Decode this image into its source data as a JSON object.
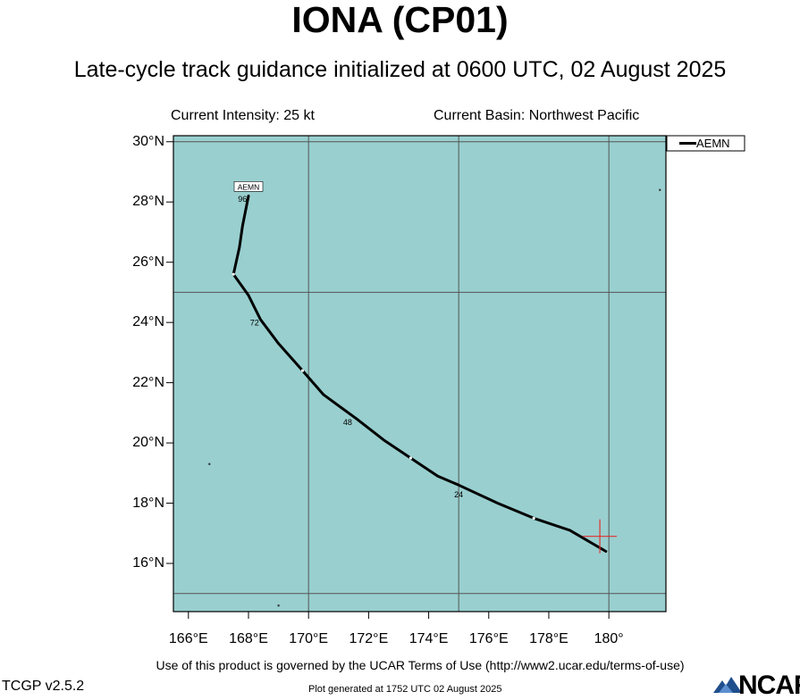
{
  "storm": {
    "title": "IONA (CP01)",
    "subtitle": "Late-cycle track guidance initialized at 0600 UTC, 02 August 2025"
  },
  "info": {
    "intensity": "Current Intensity: 25 kt",
    "basin": "Current Basin: Northwest Pacific"
  },
  "map": {
    "lon_range": [
      165.5,
      181.9
    ],
    "lat_range": [
      14.4,
      30.2
    ],
    "gridlines_lon": [
      170,
      175,
      180
    ],
    "gridlines_lat": [
      15,
      25,
      30
    ],
    "ocean_color": "#99cfcf",
    "grid_color": "#555555",
    "lat_ticks": [
      {
        "value": 30,
        "label": "30°N"
      },
      {
        "value": 28,
        "label": "28°N"
      },
      {
        "value": 26,
        "label": "26°N"
      },
      {
        "value": 24,
        "label": "24°N"
      },
      {
        "value": 22,
        "label": "22°N"
      },
      {
        "value": 20,
        "label": "20°N"
      },
      {
        "value": 18,
        "label": "18°N"
      },
      {
        "value": 16,
        "label": "16°N"
      }
    ],
    "lon_ticks": [
      {
        "value": 166,
        "label": "166°E"
      },
      {
        "value": 168,
        "label": "168°E"
      },
      {
        "value": 170,
        "label": "170°E"
      },
      {
        "value": 172,
        "label": "172°E"
      },
      {
        "value": 174,
        "label": "174°E"
      },
      {
        "value": 176,
        "label": "176°E"
      },
      {
        "value": 178,
        "label": "178°E"
      },
      {
        "value": 180,
        "label": "180°"
      }
    ],
    "current_position": {
      "lon": 179.7,
      "lat": 16.9,
      "color": "#e0302f"
    },
    "islands": [
      {
        "lon": 166.7,
        "lat": 19.3
      },
      {
        "lon": 169.0,
        "lat": 14.6
      },
      {
        "lon": 181.7,
        "lat": 28.4
      }
    ]
  },
  "track": {
    "model": "AEMN",
    "points": [
      {
        "lon": 179.9,
        "lat": 16.4
      },
      {
        "lon": 178.7,
        "lat": 17.1
      },
      {
        "lon": 177.5,
        "lat": 17.5
      },
      {
        "lon": 176.3,
        "lat": 18.0
      },
      {
        "lon": 175.0,
        "lat": 18.6
      },
      {
        "lon": 174.3,
        "lat": 18.9
      },
      {
        "lon": 173.4,
        "lat": 19.5
      },
      {
        "lon": 172.5,
        "lat": 20.1
      },
      {
        "lon": 171.6,
        "lat": 20.8
      },
      {
        "lon": 170.5,
        "lat": 21.6
      },
      {
        "lon": 169.8,
        "lat": 22.4
      },
      {
        "lon": 169.0,
        "lat": 23.3
      },
      {
        "lon": 168.4,
        "lat": 24.1
      },
      {
        "lon": 168.0,
        "lat": 24.9
      },
      {
        "lon": 167.5,
        "lat": 25.6
      },
      {
        "lon": 167.7,
        "lat": 26.5
      },
      {
        "lon": 167.8,
        "lat": 27.2
      },
      {
        "lon": 168.0,
        "lat": 28.2
      }
    ],
    "tick_marks": [
      {
        "lon": 177.5,
        "lat": 17.5
      },
      {
        "lon": 173.4,
        "lat": 19.5
      },
      {
        "lon": 169.8,
        "lat": 22.4
      },
      {
        "lon": 167.5,
        "lat": 25.6
      }
    ],
    "hour_labels": [
      {
        "text": "24",
        "lon": 175.0,
        "lat": 18.2
      },
      {
        "text": "48",
        "lon": 171.3,
        "lat": 20.6
      },
      {
        "text": "72",
        "lon": 168.2,
        "lat": 23.9
      },
      {
        "text": "96",
        "lon": 167.8,
        "lat": 28.0
      }
    ],
    "end_label": {
      "text": "AEMN",
      "lon": 168.0,
      "lat": 28.5
    }
  },
  "legend": {
    "entries": [
      {
        "label": "AEMN"
      }
    ]
  },
  "footer": {
    "terms": "Use of this product is governed by the UCAR Terms of Use (http://www2.ucar.edu/terms-of-use)",
    "version": "TCGP v2.5.2",
    "generated": "Plot generated at 1752 UTC   02 August 2025",
    "logo_text": "NCAR"
  }
}
